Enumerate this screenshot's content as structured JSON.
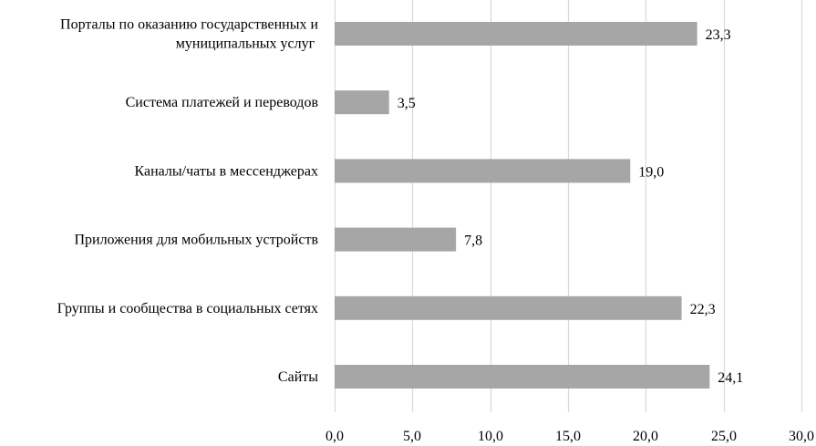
{
  "chart_data": {
    "type": "bar",
    "orientation": "horizontal",
    "categories": [
      [
        "Порталы по оказанию государственных и",
        "муниципальных услуг"
      ],
      [
        "Система платежей и переводов"
      ],
      [
        "Каналы/чаты в мессенджерах"
      ],
      [
        "Приложения для мобильных устройств"
      ],
      [
        "Группы и сообщества в социальных сетях"
      ],
      [
        "Сайты"
      ]
    ],
    "values": [
      23.3,
      3.5,
      19.0,
      7.8,
      22.3,
      24.1
    ],
    "value_labels": [
      "23,3",
      "3,5",
      "19,0",
      "7,8",
      "22,3",
      "24,1"
    ],
    "xlim": [
      0,
      30
    ],
    "ticks": [
      0,
      5,
      10,
      15,
      20,
      25,
      30
    ],
    "tick_labels": [
      "0,0",
      "5,0",
      "10,0",
      "15,0",
      "20,0",
      "25,0",
      "30,0"
    ],
    "title": "",
    "xlabel": "",
    "ylabel": "",
    "grid": "vertical",
    "legend": "none",
    "colors": {
      "bar": "#a6a6a6",
      "grid": "#d9d9d9",
      "text": "#000000"
    }
  }
}
